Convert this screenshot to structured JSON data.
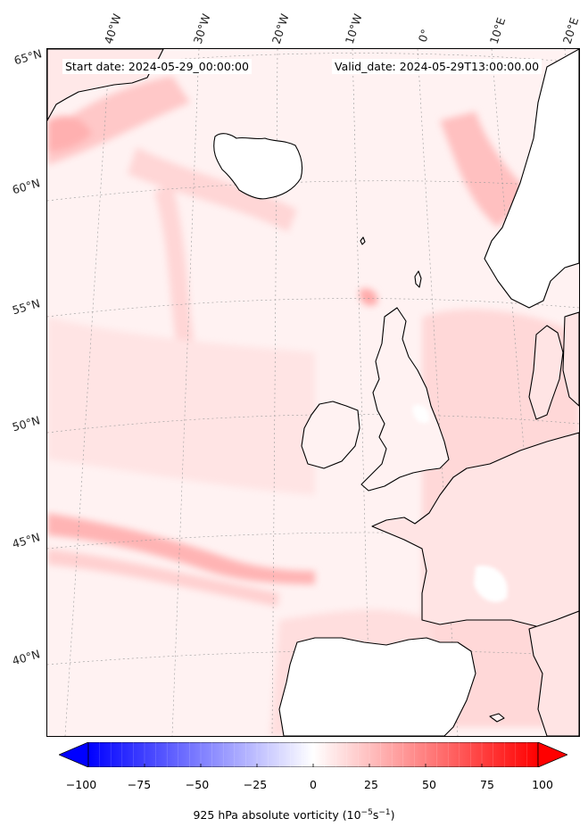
{
  "header": {
    "start_date": "Start date: 2024-05-29_00:00:00",
    "valid_date": "Valid_date: 2024-05-29T13:00:00.00"
  },
  "longitude_labels": [
    "40°W",
    "30°W",
    "20°W",
    "10°W",
    "0°",
    "10°E",
    "20°E"
  ],
  "latitude_labels": [
    "65°N",
    "60°N",
    "55°N",
    "50°N",
    "45°N",
    "40°N"
  ],
  "colorbar": {
    "ticks": [
      "−100",
      "−75",
      "−50",
      "−25",
      "0",
      "25",
      "50",
      "75",
      "100"
    ],
    "min": -100,
    "max": 100,
    "color_low": "#0000ff",
    "color_mid": "#ffffff",
    "color_high": "#ff0000",
    "title_main": "925 hPa absolute vorticity (10",
    "title_exp1": "−5",
    "title_mid": "s",
    "title_exp2": "−1",
    "title_end": ")"
  },
  "map_colors": {
    "background": "#fff2f2",
    "light": "#ffe0e0",
    "medium": "#ffc8c8",
    "strong": "#ff9e9e",
    "coast": "#000000"
  }
}
